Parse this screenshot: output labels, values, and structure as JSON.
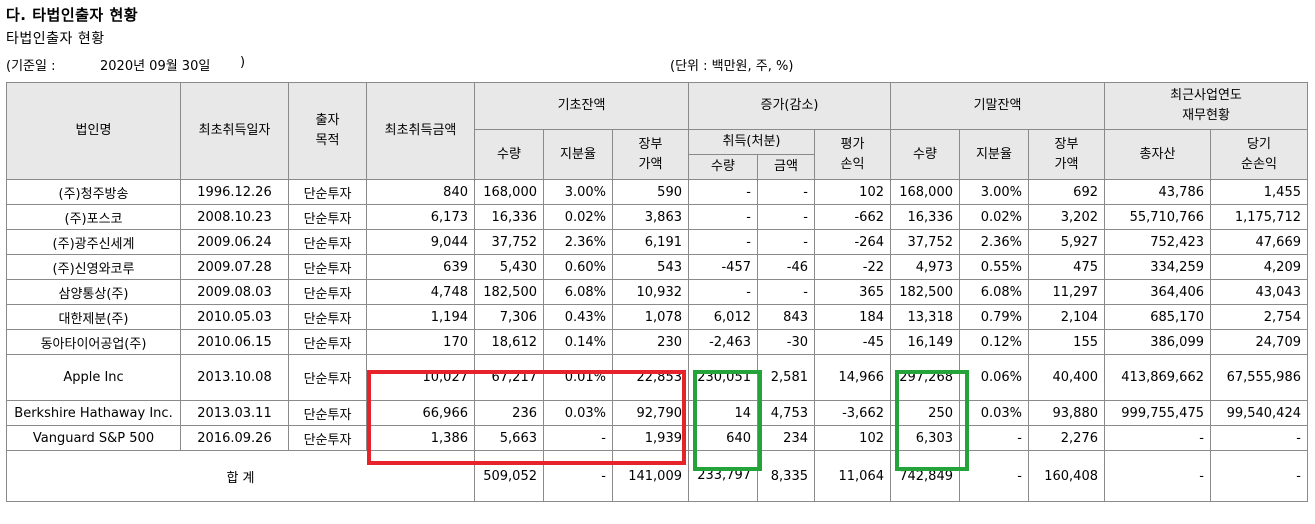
{
  "heading": "다. 타법인출자 현황",
  "subheading": "타법인출자 현황",
  "baseline": {
    "label": "(기준일 :",
    "date": "2020년 09월 30일",
    "close": ")"
  },
  "unit": "(단위 : 백만원, 주, %)",
  "headers": {
    "company": "법인명",
    "first_acq_date": "최초취득일자",
    "purpose": "출자\n목적",
    "first_acq_amount": "최초취득금액",
    "opening": "기초잔액",
    "change": "증가(감소)",
    "closing": "기말잔액",
    "recent_fin": "최근사업연도\n재무현황",
    "qty": "수량",
    "share": "지분율",
    "book": "장부\n가액",
    "acq_disp": "취득(처분)",
    "valuation": "평가\n손익",
    "amount": "금액",
    "total_assets": "총자산",
    "net_income": "당기\n순손익"
  },
  "rows": [
    {
      "company": "(주)청주방송",
      "date": "1996.12.26",
      "purpose": "단순투자",
      "first_amount": "840",
      "open_qty": "168,000",
      "open_share": "3.00%",
      "open_book": "590",
      "chg_qty": "-",
      "chg_amt": "-",
      "val": "102",
      "close_qty": "168,000",
      "close_share": "3.00%",
      "close_book": "692",
      "total_assets": "43,786",
      "net_income": "1,455"
    },
    {
      "company": "(주)포스코",
      "date": "2008.10.23",
      "purpose": "단순투자",
      "first_amount": "6,173",
      "open_qty": "16,336",
      "open_share": "0.02%",
      "open_book": "3,863",
      "chg_qty": "-",
      "chg_amt": "-",
      "val": "-662",
      "close_qty": "16,336",
      "close_share": "0.02%",
      "close_book": "3,202",
      "total_assets": "55,710,766",
      "net_income": "1,175,712"
    },
    {
      "company": "(주)광주신세계",
      "date": "2009.06.24",
      "purpose": "단순투자",
      "first_amount": "9,044",
      "open_qty": "37,752",
      "open_share": "2.36%",
      "open_book": "6,191",
      "chg_qty": "-",
      "chg_amt": "-",
      "val": "-264",
      "close_qty": "37,752",
      "close_share": "2.36%",
      "close_book": "5,927",
      "total_assets": "752,423",
      "net_income": "47,669"
    },
    {
      "company": "(주)신영와코루",
      "date": "2009.07.28",
      "purpose": "단순투자",
      "first_amount": "639",
      "open_qty": "5,430",
      "open_share": "0.60%",
      "open_book": "543",
      "chg_qty": "-457",
      "chg_amt": "-46",
      "val": "-22",
      "close_qty": "4,973",
      "close_share": "0.55%",
      "close_book": "475",
      "total_assets": "334,259",
      "net_income": "4,209"
    },
    {
      "company": "삼양통상(주)",
      "date": "2009.08.03",
      "purpose": "단순투자",
      "first_amount": "4,748",
      "open_qty": "182,500",
      "open_share": "6.08%",
      "open_book": "10,932",
      "chg_qty": "-",
      "chg_amt": "-",
      "val": "365",
      "close_qty": "182,500",
      "close_share": "6.08%",
      "close_book": "11,297",
      "total_assets": "364,406",
      "net_income": "43,043"
    },
    {
      "company": "대한제분(주)",
      "date": "2010.05.03",
      "purpose": "단순투자",
      "first_amount": "1,194",
      "open_qty": "7,306",
      "open_share": "0.43%",
      "open_book": "1,078",
      "chg_qty": "6,012",
      "chg_amt": "843",
      "val": "184",
      "close_qty": "13,318",
      "close_share": "0.79%",
      "close_book": "2,104",
      "total_assets": "685,170",
      "net_income": "2,754"
    },
    {
      "company": "동아타이어공업(주)",
      "date": "2010.06.15",
      "purpose": "단순투자",
      "first_amount": "170",
      "open_qty": "18,612",
      "open_share": "0.14%",
      "open_book": "230",
      "chg_qty": "-2,463",
      "chg_amt": "-30",
      "val": "-45",
      "close_qty": "16,149",
      "close_share": "0.12%",
      "close_book": "155",
      "total_assets": "386,099",
      "net_income": "24,709"
    },
    {
      "company": "Apple Inc",
      "date": "2013.10.08",
      "purpose": "단순투자",
      "first_amount": "10,027",
      "open_qty": "67,217",
      "open_share": "0.01%",
      "open_book": "22,853",
      "chg_qty": "230,051",
      "chg_amt": "2,581",
      "val": "14,966",
      "close_qty": "297,268",
      "close_share": "0.06%",
      "close_book": "40,400",
      "total_assets": "413,869,662",
      "net_income": "67,555,986"
    },
    {
      "company": "Berkshire Hathaway Inc.",
      "date": "2013.03.11",
      "purpose": "단순투자",
      "first_amount": "66,966",
      "open_qty": "236",
      "open_share": "0.03%",
      "open_book": "92,790",
      "chg_qty": "14",
      "chg_amt": "4,753",
      "val": "-3,662",
      "close_qty": "250",
      "close_share": "0.03%",
      "close_book": "93,880",
      "total_assets": "999,755,475",
      "net_income": "99,540,424"
    },
    {
      "company": "Vanguard S&P 500",
      "date": "2016.09.26",
      "purpose": "단순투자",
      "first_amount": "1,386",
      "open_qty": "5,663",
      "open_share": "-",
      "open_book": "1,939",
      "chg_qty": "640",
      "chg_amt": "234",
      "val": "102",
      "close_qty": "6,303",
      "close_share": "-",
      "close_book": "2,276",
      "total_assets": "-",
      "net_income": "-"
    }
  ],
  "total": {
    "label": "합 계",
    "open_qty": "509,052",
    "open_share": "-",
    "open_book": "141,009",
    "chg_qty": "233,797",
    "chg_amt": "8,335",
    "val": "11,064",
    "close_qty": "742,849",
    "close_share": "-",
    "close_book": "160,408",
    "total_assets": "-",
    "net_income": "-"
  },
  "highlights": {
    "red": "#e6232b",
    "green": "#24a33a"
  }
}
